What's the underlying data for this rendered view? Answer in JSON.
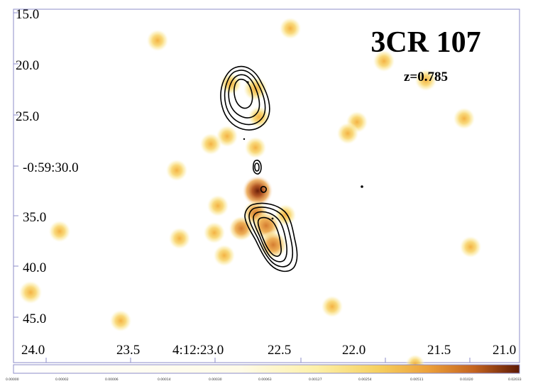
{
  "title": "3CR 107",
  "redshift_label": "z=0.785",
  "axes": {
    "y_tick_labels": [
      "15.0",
      "20.0",
      "25.0",
      "-0:59:30.0",
      "35.0",
      "40.0",
      "45.0"
    ],
    "x_tick_labels": [
      "24.0",
      "23.5",
      "4:12:23.0",
      "22.5",
      "22.0",
      "21.5",
      "21.0"
    ]
  },
  "colorbar": {
    "tick_labels": [
      "0.00000",
      "0.00002",
      "0.00006",
      "0.00014",
      "0.00030",
      "0.00063",
      "0.00127",
      "0.00254",
      "0.00511",
      "0.01020",
      "0.02033"
    ],
    "colors": [
      "#ffffff",
      "#fdf6c8",
      "#f8e27a",
      "#f0b840",
      "#e08a2a",
      "#b85a18",
      "#6a1e08"
    ]
  },
  "colors": {
    "blob_core_light": "#f6b93e",
    "blob_core_mid": "#e08b2b",
    "blob_core_dark": "#a24412",
    "contour": "#000000",
    "frame": "#8c8cc8"
  }
}
